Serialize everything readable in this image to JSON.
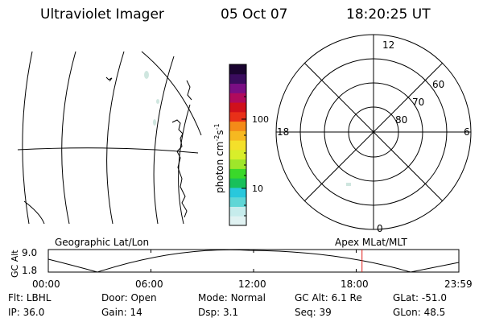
{
  "header": {
    "title": "Ultraviolet Imager",
    "date": "05 Oct 07",
    "time": "18:20:25 UT"
  },
  "colorbar": {
    "unit": "photon cm",
    "unit_exp1": "-2",
    "unit_s": "s",
    "unit_exp2": "-1",
    "tick_labels": [
      "100",
      "10"
    ],
    "colors": [
      "#e0f2f2",
      "#c6ecec",
      "#5fd6d6",
      "#29c8dc",
      "#18c05a",
      "#3ad82a",
      "#9ee62a",
      "#d8ee2a",
      "#f4e02a",
      "#f6b820",
      "#f48a18",
      "#e83018",
      "#d0101c",
      "#b00a5c",
      "#7a0e84",
      "#3a0c5e",
      "#1a0430"
    ]
  },
  "polar_plot": {
    "mlt_labels": [
      "12",
      "18",
      "6",
      "0"
    ],
    "lat_labels": [
      "60",
      "70",
      "80"
    ]
  },
  "altitude_panel": {
    "left_label": "Geographic Lat/Lon",
    "right_label": "Apex MLat/MLT",
    "axis_label": "GC Alt",
    "y_ticks": [
      "9.0",
      "1.8"
    ],
    "x_ticks": [
      "00:00",
      "06:00",
      "12:00",
      "18:00",
      "23:59"
    ],
    "current_time_hours": 18.34
  },
  "footer": {
    "row1": [
      {
        "label": "Flt:",
        "value": "LBHL"
      },
      {
        "label": "Door:",
        "value": "Open"
      },
      {
        "label": "Mode:",
        "value": "Normal"
      },
      {
        "label": "GC Alt:",
        "value": "6.1 Re"
      },
      {
        "label": "GLat:",
        "value": "-51.0"
      }
    ],
    "row2": [
      {
        "label": "IP:",
        "value": "36.0"
      },
      {
        "label": "Gain:",
        "value": "14"
      },
      {
        "label": "Dsp:",
        "value": "3.1"
      },
      {
        "label": "Seq:",
        "value": "39"
      },
      {
        "label": "GLon:",
        "value": "48.5"
      }
    ]
  }
}
